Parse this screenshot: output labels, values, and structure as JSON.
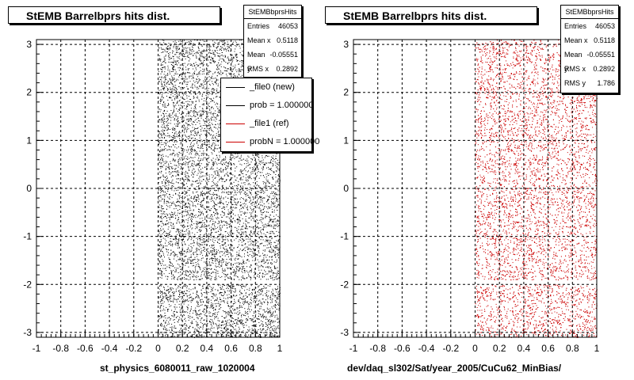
{
  "panels": [
    {
      "title": "StEMB Barrelbprs hits dist.",
      "xaxis_title": "st_physics_6080011_raw_1020004",
      "stats": {
        "name": "StEMBbprsHits",
        "rows": [
          {
            "label": "Entries",
            "value": "46053"
          },
          {
            "label": "Mean x",
            "value": "0.5118"
          },
          {
            "label": "Mean y",
            "value": "-0.05551"
          },
          {
            "label": "RMS x",
            "value": "0.2892"
          }
        ]
      },
      "legend": [
        {
          "label": "_file0 (new)",
          "color": "#000000"
        },
        {
          "label": "prob = 1.000000",
          "color": "#000000"
        },
        {
          "label": "_file1 (ref)",
          "color": "#cc0000"
        },
        {
          "label": "probN = 1.000000",
          "color": "#cc0000"
        }
      ]
    },
    {
      "title": "StEMB Barrelbprs hits dist.",
      "xaxis_title": "dev/daq_sl302/Sat/year_2005/CuCu62_MinBias/",
      "stats": {
        "name": "StEMBbprsHits",
        "rows": [
          {
            "label": "Entries",
            "value": "46053"
          },
          {
            "label": "Mean x",
            "value": "0.5118"
          },
          {
            "label": "Mean y",
            "value": "-0.05551"
          },
          {
            "label": "RMS x",
            "value": "0.2892"
          },
          {
            "label": "RMS y",
            "value": "1.786"
          }
        ]
      }
    }
  ],
  "chart_data": [
    {
      "type": "scatter",
      "title": "StEMB Barrelbprs hits dist.",
      "xlabel": "st_physics_6080011_raw_1020004",
      "ylabel": "",
      "xlim": [
        -1,
        1
      ],
      "ylim": [
        -3.1,
        3.1
      ],
      "xticks": [
        "-1",
        "-0.8",
        "-0.6",
        "-0.4",
        "-0.2",
        "0",
        "0.2",
        "0.4",
        "0.6",
        "0.8",
        "1"
      ],
      "yticks": [
        "-3",
        "-2",
        "-1",
        "0",
        "1",
        "2",
        "3"
      ],
      "grid": true,
      "series": [
        {
          "name": "_file0 (new)",
          "color": "#000000",
          "x_range": [
            0,
            1
          ],
          "y_range": [
            -3.1,
            3.1
          ],
          "y_gap": [
            -2.0,
            -1.9
          ],
          "entries": 46053
        }
      ]
    },
    {
      "type": "scatter",
      "title": "StEMB Barrelbprs hits dist.",
      "xlabel": "dev/daq_sl302/Sat/year_2005/CuCu62_MinBias/",
      "ylabel": "",
      "xlim": [
        -1,
        1
      ],
      "ylim": [
        -3.1,
        3.1
      ],
      "xticks": [
        "-1",
        "-0.8",
        "-0.6",
        "-0.4",
        "-0.2",
        "0",
        "0.2",
        "0.4",
        "0.6",
        "0.8",
        "1"
      ],
      "yticks": [
        "-3",
        "-2",
        "-1",
        "0",
        "1",
        "2",
        "3"
      ],
      "grid": true,
      "series": [
        {
          "name": "_file1 (ref)",
          "color": "#cc0000",
          "x_range": [
            0,
            1
          ],
          "y_range": [
            -3.1,
            3.1
          ],
          "y_gap": [
            -2.0,
            -1.9
          ],
          "entries": 46053
        }
      ]
    }
  ]
}
